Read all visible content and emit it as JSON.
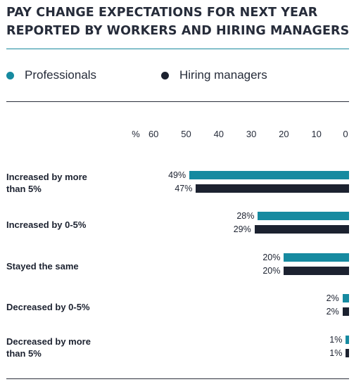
{
  "chart_data": {
    "type": "bar",
    "orientation": "horizontal",
    "title": "PAY CHANGE EXPECTATIONS FOR NEXT YEAR REPORTED BY WORKERS AND HIRING MANAGERS",
    "categories": [
      "Increased by more than 5%",
      "Increased by 0-5%",
      "Stayed the same",
      "Decreased by 0-5%",
      "Decreased by more than 5%"
    ],
    "series": [
      {
        "name": "Professionals",
        "color": "#168aa0",
        "values": [
          49,
          28,
          20,
          2,
          1
        ],
        "labels": [
          "49%",
          "28%",
          "20%",
          "2%",
          "1%"
        ]
      },
      {
        "name": "Hiring managers",
        "color": "#1c2230",
        "values": [
          47,
          29,
          20,
          2,
          1
        ],
        "labels": [
          "47%",
          "29%",
          "20%",
          "2%",
          "1%"
        ]
      }
    ],
    "axis": {
      "unit_label": "%",
      "ticks": [
        60,
        50,
        40,
        30,
        20,
        10,
        0
      ],
      "tick_labels": [
        "60",
        "50",
        "40",
        "30",
        "20",
        "10",
        "0"
      ],
      "xlim": [
        0,
        60
      ],
      "reversed": true,
      "position": "top"
    },
    "grid": false,
    "legend_position": "top"
  }
}
